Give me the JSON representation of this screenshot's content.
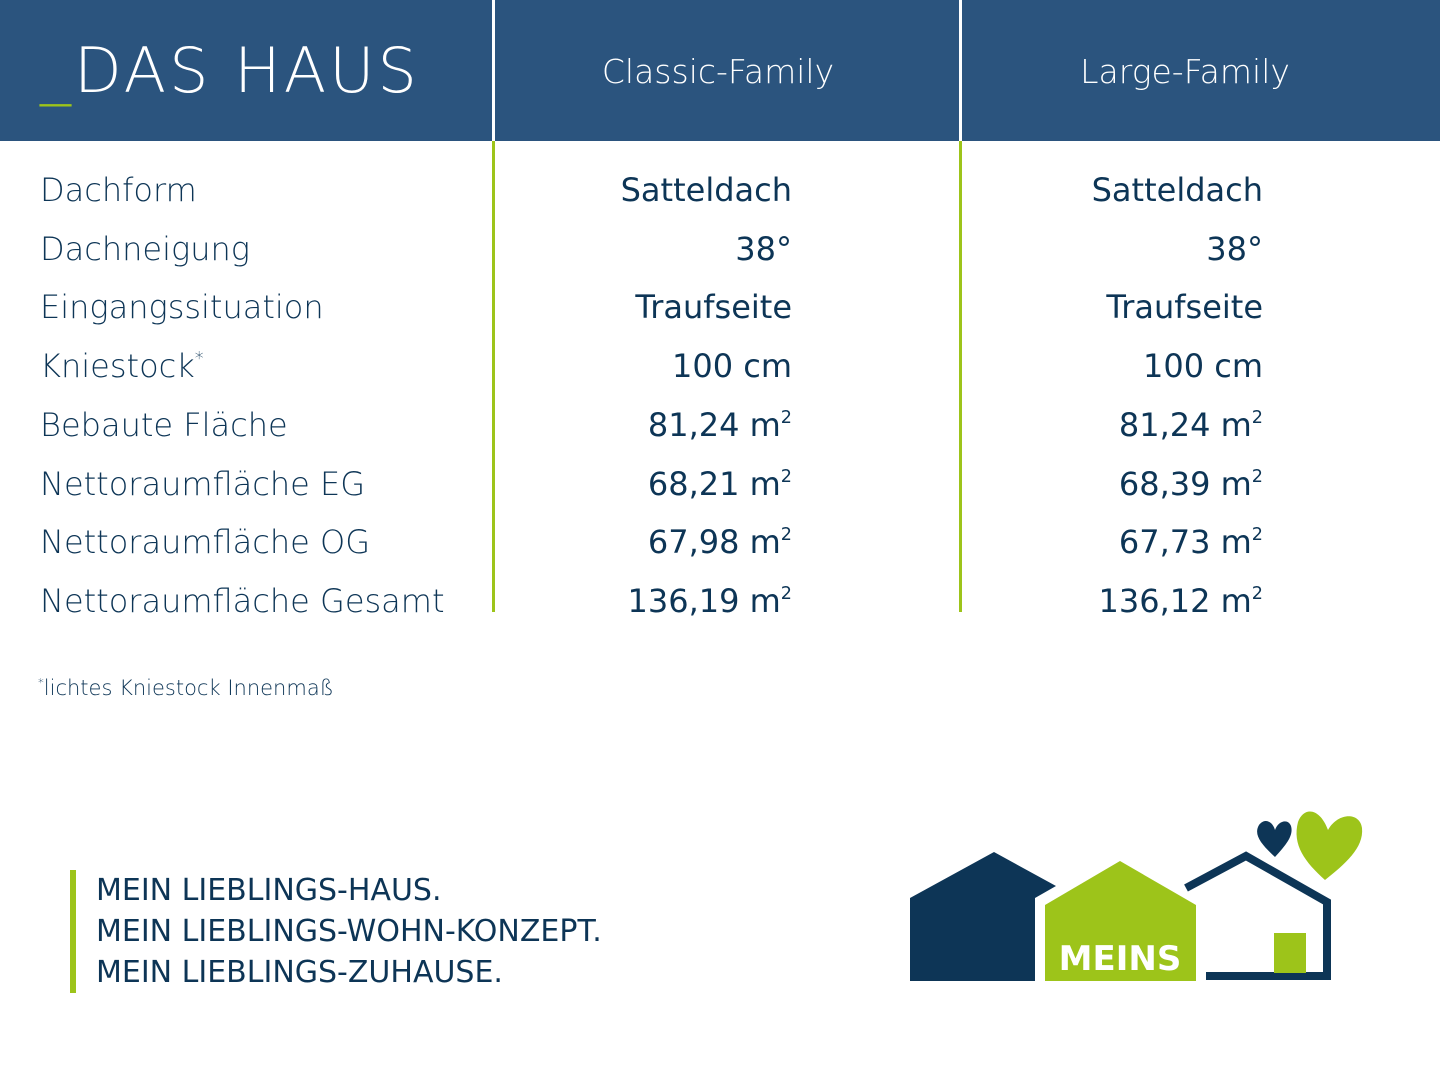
{
  "header": {
    "title_prefix": "_",
    "title": "DAS HAUS",
    "columns": [
      "Classic-Family",
      "Large-Family"
    ]
  },
  "rows": [
    {
      "label": "Dachform",
      "sup": "",
      "values": [
        "Satteldach",
        "Satteldach"
      ],
      "unit_sup": [
        "",
        ""
      ]
    },
    {
      "label": "Dachneigung",
      "sup": "",
      "values": [
        "38°",
        "38°"
      ],
      "unit_sup": [
        "",
        ""
      ]
    },
    {
      "label": "Eingangssituation",
      "sup": "",
      "values": [
        "Traufseite",
        "Traufseite"
      ],
      "unit_sup": [
        "",
        ""
      ]
    },
    {
      "label": "Kniestock",
      "sup": "*",
      "values": [
        "100 cm",
        "100 cm"
      ],
      "unit_sup": [
        "",
        ""
      ]
    },
    {
      "label": "Bebaute Fläche",
      "sup": "",
      "values": [
        "81,24 m",
        "81,24 m"
      ],
      "unit_sup": [
        "2",
        "2"
      ]
    },
    {
      "label": "Nettoraumfläche EG",
      "sup": "",
      "values": [
        "68,21 m",
        "68,39 m"
      ],
      "unit_sup": [
        "2",
        "2"
      ]
    },
    {
      "label": "Nettoraumfläche OG",
      "sup": "",
      "values": [
        "67,98 m",
        "67,73 m"
      ],
      "unit_sup": [
        "2",
        "2"
      ]
    },
    {
      "label": "Nettoraumfläche Gesamt",
      "sup": "",
      "values": [
        "136,19 m",
        "136,12 m"
      ],
      "unit_sup": [
        "2",
        "2"
      ]
    }
  ],
  "footnote": {
    "mark": "*",
    "text": "lichtes Kniestock Innenmaß"
  },
  "slogan": [
    "MEIN LIEBLINGS-HAUS.",
    "MEIN LIEBLINGS-WOHN-KONZEPT.",
    "MEIN LIEBLINGS-ZUHAUSE."
  ],
  "logo": {
    "text": "MEINS"
  },
  "colors": {
    "header_bg": "#2b547e",
    "navy": "#0d3556",
    "green": "#9dc41a"
  }
}
